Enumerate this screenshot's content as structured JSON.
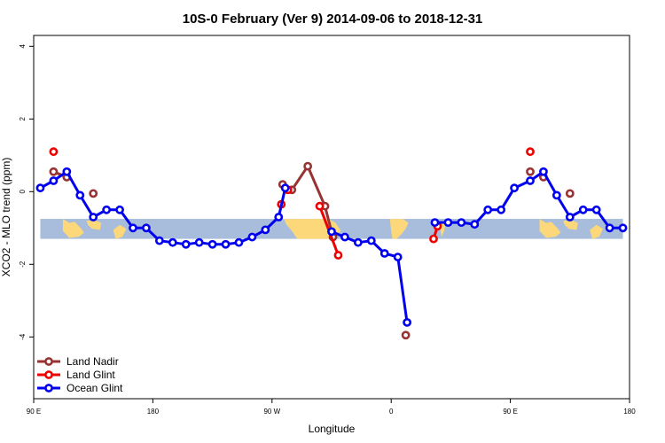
{
  "chart_data": {
    "type": "line",
    "title": "10S-0 February (Ver 9)   2014-09-06 to 2018-12-31",
    "xlabel": "Longitude",
    "ylabel": "XCO2 - MLO trend (ppm)",
    "xlim": [
      90,
      540
    ],
    "ylim": [
      -5.7,
      4.3
    ],
    "x_ticks": [
      {
        "value": 90,
        "label": "90 E"
      },
      {
        "value": 180,
        "label": "180"
      },
      {
        "value": 270,
        "label": "90 W"
      },
      {
        "value": 360,
        "label": "0"
      },
      {
        "value": 450,
        "label": "90 E"
      },
      {
        "value": 540,
        "label": "180"
      }
    ],
    "y_ticks": [
      {
        "value": 4,
        "label": "4"
      },
      {
        "value": 2,
        "label": "2"
      },
      {
        "value": 0,
        "label": "0"
      },
      {
        "value": -2,
        "label": "-2"
      },
      {
        "value": -4,
        "label": "-4"
      }
    ],
    "map_band": {
      "y_top": -0.75,
      "y_bottom": -1.3,
      "ocean_color": "#a7bddb",
      "land_color": "#fcd87a"
    },
    "legend_position": "bottom-left",
    "series": [
      {
        "name": "Land Nadir",
        "color": "#993333",
        "points": [
          [
            105,
            0.55
          ],
          [
            115,
            0.4
          ],
          [
            135,
            -0.05
          ],
          [
            278,
            0.2
          ],
          [
            285,
            0.05
          ],
          [
            297,
            0.7
          ],
          [
            310,
            -0.4
          ],
          [
            316,
            -1.25
          ],
          [
            371,
            -3.95
          ],
          [
            465,
            0.55
          ],
          [
            475,
            0.4
          ],
          [
            495,
            -0.05
          ]
        ],
        "segments": [
          [
            [
              105,
              0.55
            ],
            [
              115,
              0.4
            ]
          ],
          [
            [
              278,
              0.2
            ],
            [
              285,
              0.05
            ],
            [
              297,
              0.7
            ],
            [
              310,
              -0.4
            ],
            [
              316,
              -1.25
            ]
          ]
        ]
      },
      {
        "name": "Land Glint",
        "color": "#ee0000",
        "points": [
          [
            105,
            1.1
          ],
          [
            277,
            -0.35
          ],
          [
            282,
            0.05
          ],
          [
            306,
            -0.4
          ],
          [
            320,
            -1.75
          ],
          [
            392,
            -1.3
          ],
          [
            395,
            -0.95
          ],
          [
            465,
            1.1
          ]
        ],
        "segments": [
          [
            [
              306,
              -0.4
            ],
            [
              320,
              -1.75
            ]
          ],
          [
            [
              392,
              -1.3
            ],
            [
              395,
              -0.95
            ]
          ]
        ]
      },
      {
        "name": "Ocean Glint",
        "color": "#0000ee",
        "points": [
          [
            95,
            0.1
          ],
          [
            105,
            0.3
          ],
          [
            115,
            0.55
          ],
          [
            125,
            -0.1
          ],
          [
            135,
            -0.7
          ],
          [
            145,
            -0.5
          ],
          [
            155,
            -0.5
          ],
          [
            165,
            -1.0
          ],
          [
            175,
            -1.0
          ],
          [
            185,
            -1.35
          ],
          [
            195,
            -1.4
          ],
          [
            205,
            -1.45
          ],
          [
            215,
            -1.4
          ],
          [
            225,
            -1.45
          ],
          [
            235,
            -1.45
          ],
          [
            245,
            -1.4
          ],
          [
            255,
            -1.25
          ],
          [
            265,
            -1.05
          ],
          [
            275,
            -0.7
          ],
          [
            280,
            0.1
          ],
          [
            315,
            -1.1
          ],
          [
            325,
            -1.25
          ],
          [
            335,
            -1.4
          ],
          [
            345,
            -1.35
          ],
          [
            355,
            -1.7
          ],
          [
            365,
            -1.8
          ],
          [
            372,
            -3.6
          ],
          [
            393,
            -0.85
          ],
          [
            403,
            -0.85
          ],
          [
            413,
            -0.85
          ],
          [
            423,
            -0.9
          ],
          [
            433,
            -0.5
          ],
          [
            443,
            -0.5
          ],
          [
            453,
            0.1
          ],
          [
            465,
            0.3
          ],
          [
            475,
            0.55
          ],
          [
            485,
            -0.1
          ],
          [
            495,
            -0.7
          ],
          [
            505,
            -0.5
          ],
          [
            515,
            -0.5
          ],
          [
            525,
            -1.0
          ],
          [
            535,
            -1.0
          ]
        ],
        "segments": [
          [
            [
              95,
              0.1
            ],
            [
              105,
              0.3
            ],
            [
              115,
              0.55
            ],
            [
              125,
              -0.1
            ],
            [
              135,
              -0.7
            ],
            [
              145,
              -0.5
            ],
            [
              155,
              -0.5
            ],
            [
              165,
              -1.0
            ],
            [
              175,
              -1.0
            ],
            [
              185,
              -1.35
            ],
            [
              195,
              -1.4
            ],
            [
              205,
              -1.45
            ],
            [
              215,
              -1.4
            ],
            [
              225,
              -1.45
            ],
            [
              235,
              -1.45
            ],
            [
              245,
              -1.4
            ],
            [
              255,
              -1.25
            ],
            [
              265,
              -1.05
            ],
            [
              275,
              -0.7
            ],
            [
              280,
              0.1
            ]
          ],
          [
            [
              315,
              -1.1
            ],
            [
              325,
              -1.25
            ],
            [
              335,
              -1.4
            ],
            [
              345,
              -1.35
            ],
            [
              355,
              -1.7
            ],
            [
              365,
              -1.8
            ],
            [
              372,
              -3.6
            ]
          ],
          [
            [
              393,
              -0.85
            ],
            [
              403,
              -0.85
            ],
            [
              413,
              -0.85
            ],
            [
              423,
              -0.9
            ],
            [
              433,
              -0.5
            ],
            [
              443,
              -0.5
            ],
            [
              453,
              0.1
            ],
            [
              465,
              0.3
            ],
            [
              475,
              0.55
            ],
            [
              485,
              -0.1
            ],
            [
              495,
              -0.7
            ],
            [
              505,
              -0.5
            ],
            [
              515,
              -0.5
            ],
            [
              525,
              -1.0
            ],
            [
              535,
              -1.0
            ]
          ]
        ]
      }
    ]
  }
}
